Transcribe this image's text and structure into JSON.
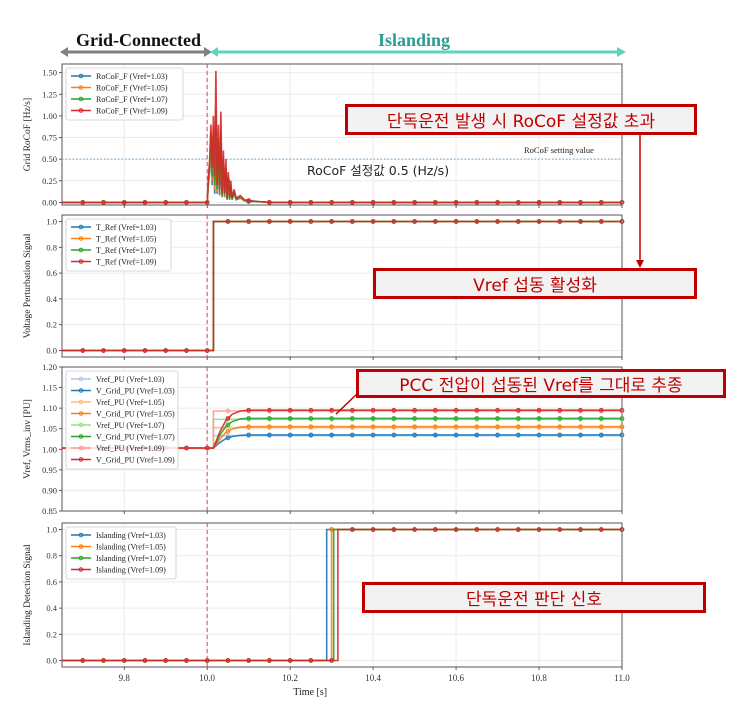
{
  "header": {
    "grid_connected": "Grid-Connected",
    "islanding": "Islanding",
    "grid_color": "#7f7f7f",
    "islanding_color": "#5fd3bc",
    "islanding_text_color": "#2a9d8f"
  },
  "annotations": {
    "rocof_exceed": "단독운전 발생 시 RoCoF 설정값 초과",
    "vref_active": "Vref 섭동 활성화",
    "pcc_track": "PCC 전압이  섭동된 Vref를 그대로 추종",
    "detect_signal": "단독운전 판단 신호",
    "rocof_setting_kr": "RoCoF 설정값 0.5 (Hz/s)",
    "rocof_setting_en": "RoCoF setting value",
    "accent": "#c00000"
  },
  "chart_data": [
    {
      "type": "line",
      "title": "",
      "xlabel": "",
      "ylabel": "Grid RoCoF [Hz/s]",
      "xlim": [
        9.65,
        11.0
      ],
      "ylim": [
        -0.03,
        1.6
      ],
      "yticks": [
        0.0,
        0.25,
        0.5,
        0.75,
        1.0,
        1.25,
        1.5
      ],
      "ytick_decimals": 2,
      "xticks": [
        9.8,
        10.0,
        10.2,
        10.4,
        10.6,
        10.8,
        11.0
      ],
      "show_xticklabels": false,
      "grid": true,
      "event_line_x": 10.0,
      "hline": {
        "y": 0.5,
        "color": "#7fb2d9"
      },
      "legend_position": "top-left",
      "series": [
        {
          "name": "RoCoF_F (Vref=1.03)",
          "color": "#1f77b4",
          "x": [
            9.65,
            10.0,
            10.003,
            10.006,
            10.009,
            10.012,
            10.015,
            10.018,
            10.021,
            10.024,
            10.027,
            10.03,
            10.033,
            10.036,
            10.039,
            10.042,
            10.045,
            10.048,
            10.051,
            10.054,
            10.057,
            10.06,
            10.065,
            10.07,
            10.08,
            10.09,
            10.1,
            10.12,
            10.15,
            11.0
          ],
          "y": [
            0,
            0,
            0.2,
            0.35,
            0.65,
            0.2,
            0.65,
            0.1,
            0.6,
            0.1,
            0.55,
            0.08,
            0.5,
            0.06,
            0.35,
            0.06,
            0.3,
            0.03,
            0.22,
            0.03,
            0.15,
            0.03,
            0.1,
            0.03,
            0.05,
            0.02,
            0.01,
            0.01,
            0,
            0
          ]
        },
        {
          "name": "RoCoF_F (Vref=1.05)",
          "color": "#ff7f0e",
          "x": [
            9.65,
            10.0,
            10.003,
            10.006,
            10.009,
            10.012,
            10.015,
            10.018,
            10.021,
            10.024,
            10.027,
            10.03,
            10.033,
            10.036,
            10.039,
            10.042,
            10.045,
            10.048,
            10.051,
            10.054,
            10.057,
            10.06,
            10.065,
            10.07,
            10.08,
            10.09,
            10.1,
            10.12,
            10.15,
            11.0
          ],
          "y": [
            0,
            0,
            0.22,
            0.4,
            0.7,
            0.25,
            0.75,
            0.15,
            0.8,
            0.12,
            0.65,
            0.09,
            0.65,
            0.07,
            0.42,
            0.07,
            0.35,
            0.04,
            0.26,
            0.04,
            0.18,
            0.04,
            0.11,
            0.04,
            0.05,
            0.02,
            0.02,
            0.01,
            0,
            0
          ]
        },
        {
          "name": "RoCoF_F (Vref=1.07)",
          "color": "#2ca02c",
          "x": [
            9.65,
            10.0,
            10.003,
            10.006,
            10.009,
            10.012,
            10.015,
            10.018,
            10.021,
            10.024,
            10.027,
            10.03,
            10.033,
            10.036,
            10.039,
            10.042,
            10.045,
            10.048,
            10.051,
            10.054,
            10.057,
            10.06,
            10.065,
            10.07,
            10.08,
            10.09,
            10.1,
            10.12,
            10.15,
            11.0
          ],
          "y": [
            0,
            0,
            0.25,
            0.45,
            0.8,
            0.3,
            0.85,
            0.2,
            1.07,
            0.15,
            0.75,
            0.1,
            0.8,
            0.08,
            0.5,
            0.08,
            0.4,
            0.04,
            0.3,
            0.04,
            0.2,
            0.04,
            0.12,
            0.04,
            0.06,
            0.02,
            0.02,
            0.01,
            0,
            0
          ]
        },
        {
          "name": "RoCoF_F (Vref=1.09)",
          "color": "#d62728",
          "x": [
            9.65,
            10.0,
            10.003,
            10.006,
            10.009,
            10.012,
            10.015,
            10.018,
            10.021,
            10.024,
            10.027,
            10.03,
            10.033,
            10.036,
            10.039,
            10.042,
            10.045,
            10.048,
            10.051,
            10.054,
            10.057,
            10.06,
            10.065,
            10.07,
            10.08,
            10.09,
            10.1,
            10.12,
            10.15,
            11.0
          ],
          "y": [
            0,
            0,
            0.3,
            0.5,
            0.9,
            0.4,
            1.0,
            0.3,
            1.52,
            0.2,
            0.9,
            0.15,
            1.05,
            0.1,
            0.6,
            0.1,
            0.5,
            0.05,
            0.35,
            0.05,
            0.25,
            0.05,
            0.15,
            0.05,
            0.08,
            0.03,
            0.02,
            0.01,
            0,
            0
          ]
        }
      ]
    },
    {
      "type": "line",
      "xlabel": "",
      "ylabel": "Voltage Perturbation Signal",
      "xlim": [
        9.65,
        11.0
      ],
      "ylim": [
        -0.05,
        1.05
      ],
      "yticks": [
        0.0,
        0.2,
        0.4,
        0.6,
        0.8,
        1.0
      ],
      "ytick_decimals": 1,
      "xticks": [
        9.8,
        10.0,
        10.2,
        10.4,
        10.6,
        10.8,
        11.0
      ],
      "show_xticklabels": false,
      "grid": true,
      "event_line_x": 10.0,
      "legend_position": "top-left",
      "series": [
        {
          "name": "T_Ref (Vref=1.03)",
          "color": "#1f77b4",
          "x": [
            9.65,
            10.015,
            10.015,
            11.0
          ],
          "y": [
            0,
            0,
            1,
            1
          ]
        },
        {
          "name": "T_Ref (Vref=1.05)",
          "color": "#ff7f0e",
          "x": [
            9.65,
            10.015,
            10.015,
            11.0
          ],
          "y": [
            0,
            0,
            1,
            1
          ]
        },
        {
          "name": "T_Ref (Vref=1.07)",
          "color": "#2ca02c",
          "x": [
            9.65,
            10.015,
            10.015,
            11.0
          ],
          "y": [
            0,
            0,
            1,
            1
          ]
        },
        {
          "name": "T_Ref (Vref=1.09)",
          "color": "#d62728",
          "x": [
            9.65,
            10.015,
            10.015,
            11.0
          ],
          "y": [
            0,
            0,
            1,
            1
          ]
        }
      ]
    },
    {
      "type": "line",
      "xlabel": "",
      "ylabel": "Vref, Vrms_inv [PU]",
      "xlim": [
        9.65,
        11.0
      ],
      "ylim": [
        0.85,
        1.2
      ],
      "yticks": [
        0.85,
        0.9,
        0.95,
        1.0,
        1.05,
        1.1,
        1.15,
        1.2
      ],
      "ytick_decimals": 2,
      "xticks": [
        9.8,
        10.0,
        10.2,
        10.4,
        10.6,
        10.8,
        11.0
      ],
      "show_xticklabels": false,
      "grid": true,
      "event_line_x": 10.0,
      "legend_position": "top-left",
      "series": [
        {
          "name": "Vref_PU (Vref=1.03)",
          "color": "#aec7e8",
          "x": [
            9.65,
            10.015,
            10.015,
            11.0
          ],
          "y": [
            1.003,
            1.003,
            1.033,
            1.033
          ]
        },
        {
          "name": "V_Grid_PU (Vref=1.03)",
          "color": "#1f77b4",
          "x": [
            9.65,
            10.015,
            10.03,
            10.045,
            10.06,
            10.08,
            10.1,
            11.0
          ],
          "y": [
            1.003,
            1.003,
            1.016,
            1.026,
            1.031,
            1.034,
            1.035,
            1.035
          ]
        },
        {
          "name": "Vref_PU (Vref=1.05)",
          "color": "#ffbb78",
          "x": [
            9.65,
            10.015,
            10.015,
            11.0
          ],
          "y": [
            1.003,
            1.003,
            1.053,
            1.053
          ]
        },
        {
          "name": "V_Grid_PU (Vref=1.05)",
          "color": "#ff7f0e",
          "x": [
            9.65,
            10.015,
            10.03,
            10.045,
            10.06,
            10.08,
            10.1,
            11.0
          ],
          "y": [
            1.003,
            1.003,
            1.024,
            1.041,
            1.049,
            1.054,
            1.055,
            1.055
          ]
        },
        {
          "name": "Vref_PU (Vref=1.07)",
          "color": "#98df8a",
          "x": [
            9.65,
            10.015,
            10.015,
            11.0
          ],
          "y": [
            1.003,
            1.003,
            1.073,
            1.073
          ]
        },
        {
          "name": "V_Grid_PU (Vref=1.07)",
          "color": "#2ca02c",
          "x": [
            9.65,
            10.015,
            10.03,
            10.045,
            10.06,
            10.08,
            10.1,
            11.0
          ],
          "y": [
            1.003,
            1.003,
            1.033,
            1.056,
            1.067,
            1.074,
            1.075,
            1.075
          ]
        },
        {
          "name": "Vref_PU (Vref=1.09)",
          "color": "#ff9896",
          "x": [
            9.65,
            10.015,
            10.015,
            11.0
          ],
          "y": [
            1.003,
            1.003,
            1.093,
            1.093
          ]
        },
        {
          "name": "V_Grid_PU (Vref=1.09)",
          "color": "#d62728",
          "x": [
            9.65,
            10.015,
            10.03,
            10.045,
            10.06,
            10.08,
            10.1,
            11.0
          ],
          "y": [
            1.003,
            1.003,
            1.041,
            1.07,
            1.085,
            1.093,
            1.095,
            1.095
          ]
        }
      ]
    },
    {
      "type": "line",
      "xlabel": "Time [s]",
      "ylabel": "Islanding Detection Signal",
      "xlim": [
        9.65,
        11.0
      ],
      "ylim": [
        -0.05,
        1.05
      ],
      "yticks": [
        0.0,
        0.2,
        0.4,
        0.6,
        0.8,
        1.0
      ],
      "ytick_decimals": 1,
      "xticks": [
        9.8,
        10.0,
        10.2,
        10.4,
        10.6,
        10.8,
        11.0
      ],
      "xtick_decimals": 1,
      "show_xticklabels": true,
      "grid": true,
      "event_line_x": 10.0,
      "legend_position": "top-left",
      "series": [
        {
          "name": "Islanding (Vref=1.03)",
          "color": "#1f77b4",
          "x": [
            9.65,
            10.288,
            10.288,
            11.0
          ],
          "y": [
            0,
            0,
            1,
            1
          ]
        },
        {
          "name": "Islanding (Vref=1.05)",
          "color": "#ff7f0e",
          "x": [
            9.65,
            10.3,
            10.3,
            11.0
          ],
          "y": [
            0,
            0,
            1,
            1
          ]
        },
        {
          "name": "Islanding (Vref=1.07)",
          "color": "#2ca02c",
          "x": [
            9.65,
            10.305,
            10.305,
            11.0
          ],
          "y": [
            0,
            0,
            1,
            1
          ]
        },
        {
          "name": "Islanding (Vref=1.09)",
          "color": "#d62728",
          "x": [
            9.65,
            10.315,
            10.315,
            11.0
          ],
          "y": [
            0,
            0,
            1,
            1
          ]
        }
      ]
    }
  ]
}
